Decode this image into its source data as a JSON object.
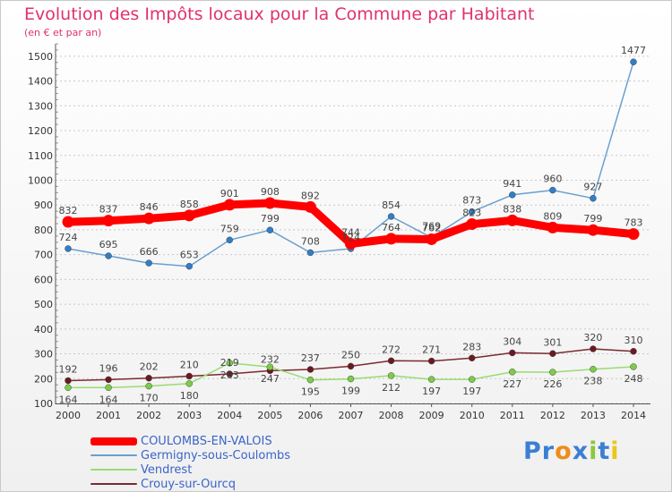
{
  "chart_data": {
    "type": "line",
    "title": "Evolution des Impôts locaux pour la Commune par Habitant",
    "subtitle": "(en € et par an)",
    "categories": [
      "2000",
      "2001",
      "2002",
      "2003",
      "2004",
      "2005",
      "2006",
      "2007",
      "2008",
      "2009",
      "2010",
      "2011",
      "2012",
      "2013",
      "2014"
    ],
    "yticks": [
      "100",
      "200",
      "300",
      "400",
      "500",
      "600",
      "700",
      "800",
      "900",
      "1000",
      "1100",
      "1200",
      "1300",
      "1400",
      "1500"
    ],
    "ylim": [
      100,
      1550
    ],
    "grid": "horizontal dashed",
    "legend_position": "bottom-left",
    "series": [
      {
        "name": "COULOMBS-EN-VALOIS",
        "color": "#ff0000",
        "marker": "#ff0000",
        "values": [
          832,
          837,
          846,
          858,
          901,
          908,
          892,
          744,
          764,
          762,
          823,
          838,
          809,
          799,
          783
        ]
      },
      {
        "name": "Germigny-sous-Coulombs",
        "color": "#6a9fd0",
        "marker": "#2f7ec8",
        "values": [
          724,
          695,
          666,
          653,
          759,
          799,
          708,
          724,
          854,
          769,
          873,
          941,
          960,
          927,
          1477
        ]
      },
      {
        "name": "Vendrest",
        "color": "#98dc72",
        "marker": "#7ccc48",
        "values": [
          164,
          164,
          170,
          180,
          263,
          247,
          195,
          199,
          212,
          197,
          197,
          227,
          226,
          238,
          248
        ]
      },
      {
        "name": "Crouy-sur-Ourcq",
        "color": "#7a2a30",
        "marker": "#6a1a20",
        "values": [
          192,
          196,
          202,
          210,
          219,
          232,
          237,
          250,
          272,
          271,
          283,
          304,
          301,
          320,
          310
        ]
      }
    ],
    "data_labels": [
      [
        "832",
        "837",
        "846",
        "858",
        "901",
        "908",
        "892",
        "744",
        "764",
        "762",
        "823",
        "838",
        "809",
        "799",
        "783"
      ],
      [
        "724",
        "695",
        "666",
        "653",
        "759",
        "799",
        "708",
        "724",
        "854",
        "769",
        "873",
        "941",
        "960",
        "927",
        "1477"
      ],
      [
        "164",
        "164",
        "170",
        "180",
        "263",
        "247",
        "195",
        "199",
        "212",
        "197",
        "197",
        "227",
        "226",
        "238",
        "248"
      ],
      [
        "192",
        "196",
        "202",
        "210",
        "219",
        "232",
        "237",
        "250",
        "272",
        "271",
        "283",
        "304",
        "301",
        "320",
        "310"
      ]
    ]
  },
  "legend": [
    {
      "label": "COULOMBS-EN-VALOIS",
      "color": "#ff0000"
    },
    {
      "label": "Germigny-sous-Coulombs",
      "color": "#6a9fd0"
    },
    {
      "label": "Vendrest",
      "color": "#98dc72"
    },
    {
      "label": "Crouy-sur-Ourcq",
      "color": "#7a2a30"
    }
  ],
  "logo": {
    "text": "Proxiti",
    "letters": [
      {
        "ch": "P",
        "color": "#3b7fd4"
      },
      {
        "ch": "r",
        "color": "#3b7fd4"
      },
      {
        "ch": "o",
        "color": "#f08c1a"
      },
      {
        "ch": "x",
        "color": "#3b7fd4"
      },
      {
        "ch": "i",
        "color": "#8cc83c"
      },
      {
        "ch": "t",
        "color": "#3b7fd4"
      },
      {
        "ch": "i",
        "color": "#e8c81a"
      }
    ]
  }
}
